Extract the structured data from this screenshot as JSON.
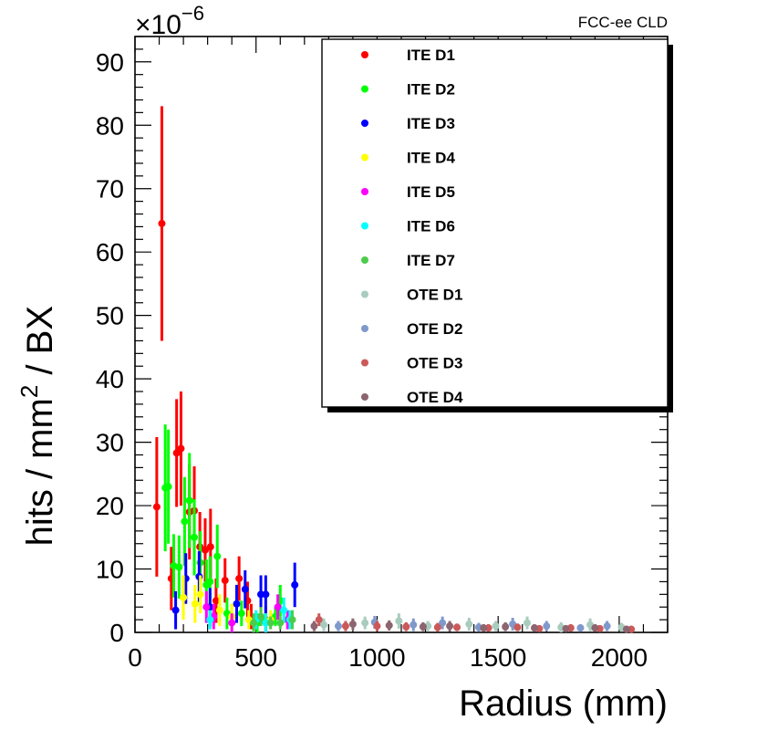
{
  "chart_data": {
    "type": "scatter",
    "experiment_label": "FCC-ee CLD",
    "ylabel": "hits / mm² / BX",
    "ylabel_parts": {
      "main": "hits / mm",
      "sup": "2",
      "tail": " / BX"
    },
    "xlabel": "Radius (mm)",
    "y_exponent": "×10⁻⁶",
    "y_exponent_parts": {
      "base": "×10",
      "sup": "−6"
    },
    "xlim": [
      0,
      2200
    ],
    "ylim": [
      0,
      94
    ],
    "x_ticks": [
      0,
      500,
      1000,
      1500,
      2000
    ],
    "x_tick_labels": [
      "0",
      "500",
      "1000",
      "1500",
      "2000"
    ],
    "y_ticks": [
      0,
      10,
      20,
      30,
      40,
      50,
      60,
      70,
      80,
      90
    ],
    "y_tick_labels": [
      "0",
      "10",
      "20",
      "30",
      "40",
      "50",
      "60",
      "70",
      "80",
      "90"
    ],
    "legend_position": "top-right",
    "series": [
      {
        "name": "ITE D1",
        "color": "#ff0000",
        "points": [
          {
            "x": 90,
            "y": 19.8,
            "err": 11.0
          },
          {
            "x": 111,
            "y": 64.5,
            "err": 18.5
          },
          {
            "x": 150,
            "y": 8.5,
            "err": 5.0
          },
          {
            "x": 172,
            "y": 28.3,
            "err": 8.5
          },
          {
            "x": 190,
            "y": 29.0,
            "err": 9.0
          },
          {
            "x": 225,
            "y": 19.0,
            "err": 7.5
          },
          {
            "x": 245,
            "y": 19.2,
            "err": 7.0
          },
          {
            "x": 268,
            "y": 13.5,
            "err": 5.5
          },
          {
            "x": 290,
            "y": 13.0,
            "err": 5.0
          },
          {
            "x": 312,
            "y": 13.5,
            "err": 6.0
          },
          {
            "x": 335,
            "y": 5.0,
            "err": 3.5
          },
          {
            "x": 372,
            "y": 8.2,
            "err": 3.5
          },
          {
            "x": 430,
            "y": 8.5,
            "err": 3.5
          },
          {
            "x": 465,
            "y": 5.0,
            "err": 3.0
          },
          {
            "x": 480,
            "y": 2.5,
            "err": 2.0
          },
          {
            "x": 540,
            "y": 2.0,
            "err": 2.0
          }
        ]
      },
      {
        "name": "ITE D2",
        "color": "#00ff00",
        "points": [
          {
            "x": 125,
            "y": 22.8,
            "err": 10.0
          },
          {
            "x": 138,
            "y": 23.0,
            "err": 9.0
          },
          {
            "x": 160,
            "y": 10.5,
            "err": 5.0
          },
          {
            "x": 182,
            "y": 10.3,
            "err": 5.0
          },
          {
            "x": 205,
            "y": 17.5,
            "err": 7.0
          },
          {
            "x": 225,
            "y": 20.8,
            "err": 7.5
          },
          {
            "x": 245,
            "y": 15.0,
            "err": 6.0
          },
          {
            "x": 270,
            "y": 11.0,
            "err": 5.0
          },
          {
            "x": 295,
            "y": 7.5,
            "err": 4.0
          },
          {
            "x": 310,
            "y": 8.0,
            "err": 4.0
          },
          {
            "x": 340,
            "y": 12.0,
            "err": 5.0
          },
          {
            "x": 380,
            "y": 3.0,
            "err": 2.5
          },
          {
            "x": 440,
            "y": 3.0,
            "err": 2.0
          },
          {
            "x": 505,
            "y": 1.5,
            "err": 1.5
          },
          {
            "x": 540,
            "y": 1.8,
            "err": 1.5
          },
          {
            "x": 580,
            "y": 2.5,
            "err": 1.5
          },
          {
            "x": 600,
            "y": 5.0,
            "err": 2.5
          }
        ]
      },
      {
        "name": "ITE D3",
        "color": "#0000ff",
        "points": [
          {
            "x": 168,
            "y": 3.5,
            "err": 3.0
          },
          {
            "x": 210,
            "y": 8.5,
            "err": 4.0
          },
          {
            "x": 265,
            "y": 8.8,
            "err": 4.0
          },
          {
            "x": 310,
            "y": 4.0,
            "err": 3.0
          },
          {
            "x": 420,
            "y": 4.5,
            "err": 3.0
          },
          {
            "x": 455,
            "y": 6.8,
            "err": 3.0
          },
          {
            "x": 520,
            "y": 6.0,
            "err": 3.0
          },
          {
            "x": 540,
            "y": 6.0,
            "err": 3.0
          },
          {
            "x": 660,
            "y": 7.5,
            "err": 3.5
          }
        ]
      },
      {
        "name": "ITE D4",
        "color": "#ffff00",
        "points": [
          {
            "x": 200,
            "y": 5.5,
            "err": 3.5
          },
          {
            "x": 248,
            "y": 4.5,
            "err": 3.0
          },
          {
            "x": 270,
            "y": 6.0,
            "err": 3.0
          },
          {
            "x": 350,
            "y": 3.5,
            "err": 2.5
          },
          {
            "x": 400,
            "y": 2.5,
            "err": 2.0
          },
          {
            "x": 470,
            "y": 2.0,
            "err": 1.5
          },
          {
            "x": 560,
            "y": 2.0,
            "err": 1.5
          }
        ]
      },
      {
        "name": "ITE D5",
        "color": "#ff00ff",
        "points": [
          {
            "x": 295,
            "y": 4.0,
            "err": 2.5
          },
          {
            "x": 325,
            "y": 2.5,
            "err": 2.0
          },
          {
            "x": 400,
            "y": 1.5,
            "err": 1.5
          },
          {
            "x": 590,
            "y": 4.0,
            "err": 2.0
          },
          {
            "x": 630,
            "y": 2.0,
            "err": 1.5
          }
        ]
      },
      {
        "name": "ITE D6",
        "color": "#00ffff",
        "points": [
          {
            "x": 310,
            "y": 2.0,
            "err": 1.5
          },
          {
            "x": 500,
            "y": 2.0,
            "err": 1.5
          },
          {
            "x": 540,
            "y": 1.5,
            "err": 1.5
          },
          {
            "x": 615,
            "y": 3.5,
            "err": 2.0
          },
          {
            "x": 640,
            "y": 2.0,
            "err": 1.5
          }
        ]
      },
      {
        "name": "ITE D7",
        "color": "#4ccc4c",
        "points": [
          {
            "x": 490,
            "y": 1.5,
            "err": 1.5
          },
          {
            "x": 520,
            "y": 2.5,
            "err": 1.5
          },
          {
            "x": 560,
            "y": 1.5,
            "err": 1.0
          },
          {
            "x": 600,
            "y": 1.5,
            "err": 1.0
          },
          {
            "x": 650,
            "y": 2.0,
            "err": 1.5
          }
        ]
      },
      {
        "name": "OTE D1",
        "color": "#a8ccbe",
        "points": [
          {
            "x": 780,
            "y": 1.2,
            "err": 1.0
          },
          {
            "x": 950,
            "y": 1.5,
            "err": 1.0
          },
          {
            "x": 1090,
            "y": 1.8,
            "err": 1.2
          },
          {
            "x": 1210,
            "y": 1.0,
            "err": 0.8
          },
          {
            "x": 1380,
            "y": 1.3,
            "err": 1.0
          },
          {
            "x": 1490,
            "y": 1.0,
            "err": 0.8
          },
          {
            "x": 1620,
            "y": 1.5,
            "err": 1.0
          },
          {
            "x": 1760,
            "y": 0.8,
            "err": 0.8
          },
          {
            "x": 1880,
            "y": 1.2,
            "err": 1.0
          },
          {
            "x": 2010,
            "y": 0.8,
            "err": 0.7
          }
        ]
      },
      {
        "name": "OTE D2",
        "color": "#7f99cc",
        "points": [
          {
            "x": 840,
            "y": 1.0,
            "err": 0.8
          },
          {
            "x": 990,
            "y": 1.6,
            "err": 1.0
          },
          {
            "x": 1150,
            "y": 1.2,
            "err": 1.0
          },
          {
            "x": 1270,
            "y": 1.5,
            "err": 1.0
          },
          {
            "x": 1420,
            "y": 0.8,
            "err": 0.7
          },
          {
            "x": 1560,
            "y": 1.3,
            "err": 1.0
          },
          {
            "x": 1700,
            "y": 1.0,
            "err": 0.8
          },
          {
            "x": 1840,
            "y": 0.7,
            "err": 0.6
          },
          {
            "x": 1950,
            "y": 1.0,
            "err": 0.8
          }
        ]
      },
      {
        "name": "OTE D3",
        "color": "#cc5959",
        "points": [
          {
            "x": 760,
            "y": 2.0,
            "err": 1.0
          },
          {
            "x": 870,
            "y": 1.0,
            "err": 0.8
          },
          {
            "x": 1000,
            "y": 1.0,
            "err": 0.8
          },
          {
            "x": 1120,
            "y": 0.9,
            "err": 0.7
          },
          {
            "x": 1250,
            "y": 0.8,
            "err": 0.7
          },
          {
            "x": 1330,
            "y": 0.8,
            "err": 0.6
          },
          {
            "x": 1460,
            "y": 0.7,
            "err": 0.6
          },
          {
            "x": 1580,
            "y": 0.8,
            "err": 0.6
          },
          {
            "x": 1670,
            "y": 0.6,
            "err": 0.5
          },
          {
            "x": 1800,
            "y": 0.7,
            "err": 0.6
          },
          {
            "x": 1920,
            "y": 0.6,
            "err": 0.5
          },
          {
            "x": 2050,
            "y": 0.5,
            "err": 0.5
          }
        ]
      },
      {
        "name": "OTE D4",
        "color": "#8c6570",
        "points": [
          {
            "x": 740,
            "y": 1.0,
            "err": 0.8
          },
          {
            "x": 900,
            "y": 1.3,
            "err": 0.9
          },
          {
            "x": 1050,
            "y": 1.1,
            "err": 0.8
          },
          {
            "x": 1190,
            "y": 0.9,
            "err": 0.7
          },
          {
            "x": 1300,
            "y": 1.0,
            "err": 0.8
          },
          {
            "x": 1440,
            "y": 0.7,
            "err": 0.6
          },
          {
            "x": 1530,
            "y": 0.9,
            "err": 0.7
          },
          {
            "x": 1650,
            "y": 0.7,
            "err": 0.6
          },
          {
            "x": 1780,
            "y": 0.6,
            "err": 0.5
          },
          {
            "x": 1900,
            "y": 0.7,
            "err": 0.6
          },
          {
            "x": 2030,
            "y": 0.5,
            "err": 0.5
          }
        ]
      }
    ]
  }
}
